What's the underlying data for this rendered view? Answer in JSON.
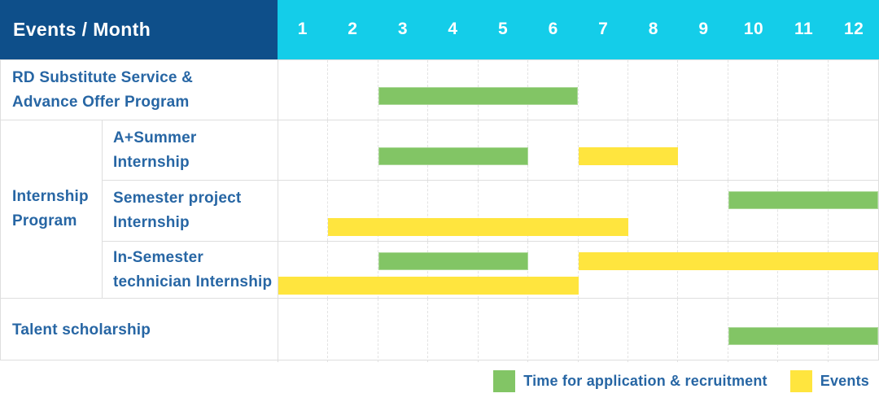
{
  "header": {
    "title": "Events / Month",
    "months": [
      "1",
      "2",
      "3",
      "4",
      "5",
      "6",
      "7",
      "8",
      "9",
      "10",
      "11",
      "12"
    ]
  },
  "rows": [
    {
      "label": "RD Substitute Service &\nAdvance Offer Program"
    },
    {
      "group": "Internship\nProgram",
      "label": "A+Summer\nInternship"
    },
    {
      "label": "Semester project\nInternship"
    },
    {
      "label": "In-Semester\ntechnician Internship"
    },
    {
      "label": "Talent scholarship"
    }
  ],
  "legend": {
    "items": [
      {
        "kind": "application",
        "label": "Time for application & recruitment"
      },
      {
        "kind": "event",
        "label": "Events"
      }
    ]
  },
  "colors": {
    "header_bg": "#0E4F8A",
    "months_bg": "#14CDE9",
    "label_text": "#2766A4",
    "application_green": "#82C565",
    "event_yellow": "#FFE53E",
    "grid_line": "#E3E3E3"
  },
  "chart_data": {
    "type": "bar",
    "variant": "gantt",
    "title": "Events / Month",
    "xlabel": "Month",
    "x_ticks": [
      1,
      2,
      3,
      4,
      5,
      6,
      7,
      8,
      9,
      10,
      11,
      12
    ],
    "x_range": [
      1,
      12
    ],
    "grid": true,
    "legend_position": "bottom-right",
    "legend_entries": [
      {
        "label": "Time for application & recruitment",
        "color": "#82C565",
        "kind": "application"
      },
      {
        "label": "Events",
        "color": "#FFE53E",
        "kind": "event"
      }
    ],
    "rows": [
      {
        "group": null,
        "label": "RD Substitute Service & Advance Offer Program",
        "bars": [
          {
            "kind": "application",
            "start_month": 3,
            "end_month": 6,
            "lane": "middle"
          }
        ]
      },
      {
        "group": "Internship Program",
        "label": "A+Summer Internship",
        "bars": [
          {
            "kind": "application",
            "start_month": 3,
            "end_month": 5,
            "lane": "middle"
          },
          {
            "kind": "event",
            "start_month": 7,
            "end_month": 8,
            "lane": "middle"
          }
        ]
      },
      {
        "group": "Internship Program",
        "label": "Semester project Internship",
        "bars": [
          {
            "kind": "application",
            "start_month": 10,
            "end_month": 12,
            "lane": "upper"
          },
          {
            "kind": "event",
            "start_month": 2,
            "end_month": 7,
            "lane": "lower"
          }
        ]
      },
      {
        "group": "Internship Program",
        "label": "In-Semester technician Internship",
        "bars": [
          {
            "kind": "application",
            "start_month": 3,
            "end_month": 5,
            "lane": "upper"
          },
          {
            "kind": "event",
            "start_month": 7,
            "end_month": 12,
            "lane": "upper"
          },
          {
            "kind": "event",
            "start_month": 1,
            "end_month": 6,
            "lane": "lower"
          }
        ]
      },
      {
        "group": null,
        "label": "Talent scholarship",
        "bars": [
          {
            "kind": "application",
            "start_month": 10,
            "end_month": 12,
            "lane": "middle"
          }
        ]
      }
    ]
  }
}
